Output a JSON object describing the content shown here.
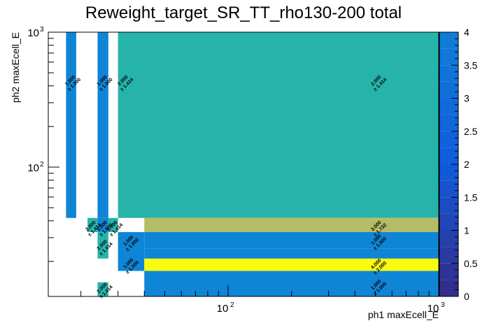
{
  "chart_data": {
    "type": "heatmap",
    "title": "Reweight_target_SR_TT_rho130-200 total",
    "xlabel": "ph1 maxEcell_E",
    "ylabel": "ph2 maxEcell_E",
    "xscale": "log",
    "yscale": "log",
    "xlim": [
      14,
      1000
    ],
    "ylim": [
      11,
      1000
    ],
    "x_ticks": [
      {
        "base": "10",
        "exp": "2",
        "value": 100
      },
      {
        "base": "10",
        "exp": "3",
        "value": 1000
      }
    ],
    "y_ticks": [
      {
        "base": "10",
        "exp": "2",
        "value": 100
      },
      {
        "base": "10",
        "exp": "3",
        "value": 1000
      }
    ],
    "zlim": [
      0,
      4
    ],
    "z_ticks": [
      "0",
      "0.5",
      "1",
      "1.5",
      "2",
      "2.5",
      "3",
      "3.5",
      "4"
    ],
    "draw_option": "COLZ TEXT (value ± error)",
    "cells": [
      {
        "x": [
          17,
          19
        ],
        "y": [
          42,
          1000
        ],
        "z": 1.0,
        "value": "1.000",
        "error": "± 1.000",
        "label_at": [
          18,
          430
        ]
      },
      {
        "x": [
          24,
          27
        ],
        "y": [
          42,
          1000
        ],
        "z": 1.0,
        "value": "1.000",
        "error": "± 1.000",
        "label_at": [
          25.5,
          430
        ]
      },
      {
        "x": [
          24,
          27
        ],
        "y": [
          33,
          42
        ],
        "z": 1.0,
        "value": "1.000",
        "error": "± 1.000",
        "label_at": [
          25.5,
          36
        ]
      },
      {
        "x": [
          30,
          1000
        ],
        "y": [
          42,
          1000
        ],
        "z": 2.0,
        "value": "2.000",
        "error": "± 1.414",
        "label_at": [
          32,
          430
        ]
      },
      {
        "x": [
          30,
          1000
        ],
        "y": [
          42,
          1000
        ],
        "z": 2.0,
        "value": "2.000",
        "error": "± 1.414",
        "label_at": [
          510,
          430
        ],
        "same_bin_repeat": true
      },
      {
        "x": [
          21.5,
          24
        ],
        "y": [
          33,
          42
        ],
        "z": 2.0,
        "value": "2.000",
        "error": "± 1.414",
        "label_at": [
          22.5,
          36
        ]
      },
      {
        "x": [
          27,
          30
        ],
        "y": [
          33,
          42
        ],
        "z": 2.0,
        "value": "2.000",
        "error": "± 1.414",
        "label_at": [
          28.5,
          36
        ]
      },
      {
        "x": [
          24,
          27
        ],
        "y": [
          21,
          33
        ],
        "z": 2.0,
        "value": "2.000",
        "error": "± 1.414",
        "label_at": [
          25.5,
          26
        ]
      },
      {
        "x": [
          24,
          27
        ],
        "y": [
          11,
          14
        ],
        "z": 2.0,
        "value": "2.000",
        "error": "± 1.414",
        "label_at": [
          25.5,
          12.5
        ]
      },
      {
        "x": [
          40,
          1000
        ],
        "y": [
          33,
          42
        ],
        "z": 3.0,
        "value": "3.000",
        "error": "± 1.732",
        "label_at": [
          510,
          36
        ]
      },
      {
        "x": [
          30,
          40
        ],
        "y": [
          17,
          33
        ],
        "z": 1.0,
        "value": "1.000",
        "error": "± 1.000",
        "label_at": [
          34,
          28
        ]
      },
      {
        "x": [
          30,
          40
        ],
        "y": [
          17,
          33
        ],
        "z": 1.0,
        "value": "1.000",
        "error": "± 1.000",
        "label_at": [
          34,
          19
        ],
        "same_bin_repeat": true
      },
      {
        "x": [
          40,
          1000
        ],
        "y": [
          25,
          33
        ],
        "z": 1.0,
        "value": "1.000",
        "error": "± 1.000",
        "label_at": [
          510,
          28.5
        ]
      },
      {
        "x": [
          40,
          1000
        ],
        "y": [
          17,
          21
        ],
        "z": 4.0,
        "value": "4.000",
        "error": "± 2.000",
        "label_at": [
          510,
          18.8
        ]
      },
      {
        "x": [
          40,
          1000
        ],
        "y": [
          11,
          17
        ],
        "z": 1.0,
        "value": "1.000",
        "error": "± 1.000",
        "label_at": [
          510,
          13.2
        ]
      },
      {
        "x": [
          40,
          1000
        ],
        "y": [
          21,
          25
        ],
        "z": 1.0,
        "value": "",
        "error": ""
      }
    ]
  }
}
